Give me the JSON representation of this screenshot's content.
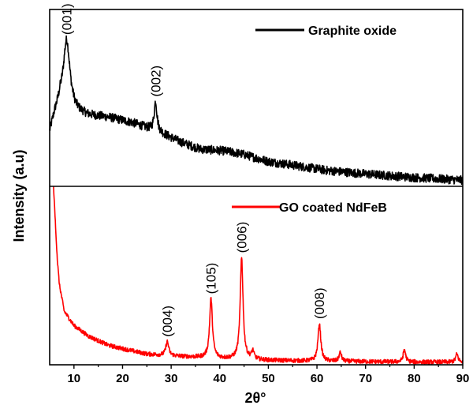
{
  "chart_data": {
    "type": "line",
    "xlabel": "2θ°",
    "ylabel": "Intensity (a.u)",
    "xlim": [
      5,
      90
    ],
    "xticks": [
      10,
      20,
      30,
      40,
      50,
      60,
      70,
      80,
      90
    ],
    "y_ticks_shown": false,
    "grid": false,
    "panels": [
      {
        "name": "Graphite oxide",
        "legend": "Graphite oxide",
        "legend_position": "top-right",
        "color": "#000000",
        "ylim": [
          0,
          100
        ],
        "base_intensity": [
          [
            5,
            30
          ],
          [
            6,
            40
          ],
          [
            7.2,
            48
          ],
          [
            10.5,
            42
          ],
          [
            13,
            40
          ],
          [
            17,
            39
          ],
          [
            22,
            36
          ],
          [
            25,
            33
          ],
          [
            28,
            30
          ],
          [
            32,
            25
          ],
          [
            36,
            21
          ],
          [
            41,
            20
          ],
          [
            45,
            18
          ],
          [
            50,
            14
          ],
          [
            55,
            12
          ],
          [
            62,
            9
          ],
          [
            70,
            7
          ],
          [
            80,
            5
          ],
          [
            90,
            3.5
          ]
        ],
        "peaks": [
          {
            "label": "(001)",
            "x": 8.5,
            "y": 83
          },
          {
            "label": "(002)",
            "x": 26.8,
            "y": 48
          }
        ],
        "noise": 2.5
      },
      {
        "name": "GO coated NdFeB",
        "legend": "GO coated NdFeB",
        "legend_position": "top-right",
        "color": "#ff0000",
        "ylim": [
          0,
          100
        ],
        "base_intensity": [
          [
            5.8,
            100
          ],
          [
            6.2,
            78
          ],
          [
            6.6,
            58
          ],
          [
            7,
            45
          ],
          [
            8,
            30
          ],
          [
            10,
            22
          ],
          [
            13,
            16
          ],
          [
            17,
            11
          ],
          [
            20,
            9
          ],
          [
            25,
            6
          ],
          [
            30,
            5
          ],
          [
            40,
            3.5
          ],
          [
            50,
            2.5
          ],
          [
            60,
            2
          ],
          [
            70,
            1.8
          ],
          [
            80,
            1.5
          ],
          [
            90,
            1.5
          ]
        ],
        "peaks": [
          {
            "label": "(004)",
            "x": 29.2,
            "y": 13
          },
          {
            "label": "(105)",
            "x": 38.2,
            "y": 37
          },
          {
            "label": "(006)",
            "x": 44.5,
            "y": 60
          },
          {
            "label": "(008)",
            "x": 60.5,
            "y": 23
          }
        ],
        "minor_peaks": [
          [
            46.8,
            4.5
          ],
          [
            64.8,
            5
          ],
          [
            78.0,
            7
          ],
          [
            88.8,
            4.5
          ]
        ],
        "noise": 1.2
      }
    ]
  }
}
